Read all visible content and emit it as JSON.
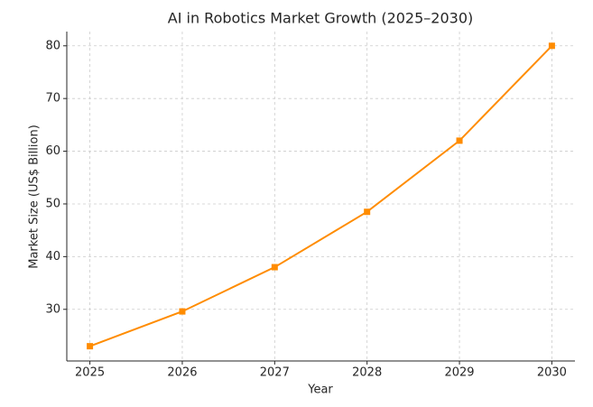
{
  "chart_data": {
    "type": "line",
    "title": "AI in Robotics Market Growth (2025–2030)",
    "x_label": "Year",
    "y_label": "Market Size (US$ Billion)",
    "x": [
      2025,
      2026,
      2027,
      2028,
      2029,
      2030
    ],
    "series": [
      {
        "color": "#ff8c00",
        "values": [
          23,
          29.6,
          38,
          48.5,
          62,
          80
        ]
      }
    ],
    "xlim": [
      2024.75,
      2030.25
    ],
    "xticks": [
      2025,
      2026,
      2027,
      2028,
      2029,
      2030
    ],
    "ylim": [
      20.2,
      82.7
    ],
    "yticks": [
      30,
      40,
      50,
      60,
      70,
      80
    ],
    "grid": true
  }
}
